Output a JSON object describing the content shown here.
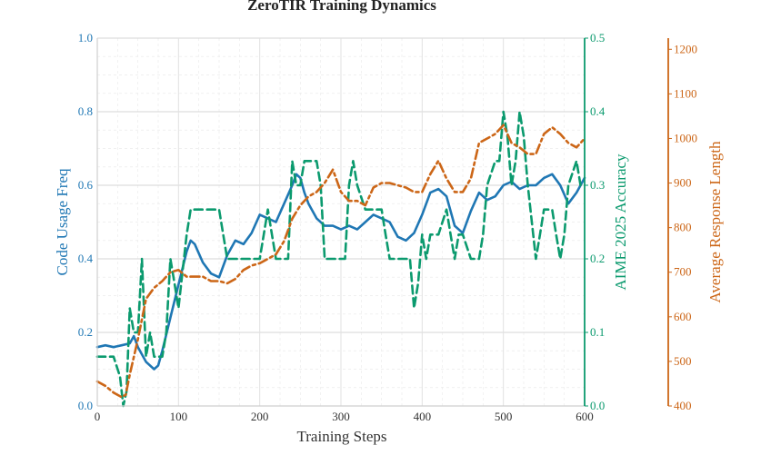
{
  "chart_data": {
    "type": "line",
    "title": "ZeroTIR Training Dynamics",
    "xlabel": "Training Steps",
    "xlim": [
      0,
      600
    ],
    "x_ticks": [
      0,
      100,
      200,
      300,
      400,
      500,
      600
    ],
    "grid": true,
    "colors": {
      "code": "#1f77b4",
      "aime": "#0b9a6e",
      "length": "#cc6617",
      "grid": "#d4d4d4"
    },
    "axes": [
      {
        "side": "left",
        "label": "Code Usage Freq",
        "ylim": [
          0.0,
          1.0
        ],
        "ticks": [
          "0.0",
          "0.2",
          "0.4",
          "0.6",
          "0.8",
          "1.0"
        ]
      },
      {
        "side": "right",
        "label": "AIME 2025 Accuracy",
        "ylim": [
          0.0,
          0.5
        ],
        "ticks": [
          "0.0",
          "0.1",
          "0.2",
          "0.3",
          "0.4",
          "0.5"
        ]
      },
      {
        "side": "right-offset",
        "label": "Average Response Length",
        "ylim": [
          400,
          1225
        ],
        "ticks": [
          "400",
          "500",
          "600",
          "700",
          "800",
          "900",
          "1000",
          "1100",
          "1200"
        ]
      }
    ],
    "series": [
      {
        "key": "code",
        "axis": 0,
        "style": "solid",
        "x": [
          0,
          10,
          20,
          30,
          40,
          45,
          50,
          60,
          70,
          75,
          80,
          90,
          100,
          110,
          115,
          120,
          130,
          140,
          150,
          160,
          170,
          180,
          190,
          200,
          210,
          220,
          230,
          240,
          245,
          250,
          255,
          260,
          270,
          280,
          290,
          300,
          310,
          320,
          330,
          340,
          350,
          360,
          370,
          380,
          390,
          400,
          410,
          420,
          430,
          440,
          450,
          460,
          470,
          480,
          490,
          500,
          510,
          520,
          530,
          540,
          550,
          560,
          570,
          580,
          590,
          600
        ],
        "values": [
          0.16,
          0.165,
          0.16,
          0.165,
          0.17,
          0.19,
          0.16,
          0.12,
          0.1,
          0.11,
          0.15,
          0.24,
          0.33,
          0.42,
          0.45,
          0.44,
          0.39,
          0.36,
          0.35,
          0.41,
          0.45,
          0.44,
          0.47,
          0.52,
          0.51,
          0.5,
          0.55,
          0.6,
          0.63,
          0.62,
          0.58,
          0.55,
          0.51,
          0.49,
          0.49,
          0.48,
          0.49,
          0.48,
          0.5,
          0.52,
          0.51,
          0.5,
          0.46,
          0.45,
          0.47,
          0.52,
          0.58,
          0.59,
          0.57,
          0.49,
          0.47,
          0.53,
          0.58,
          0.56,
          0.57,
          0.6,
          0.61,
          0.59,
          0.6,
          0.6,
          0.62,
          0.63,
          0.6,
          0.55,
          0.58,
          0.62
        ]
      },
      {
        "key": "aime",
        "axis": 1,
        "style": "dashed",
        "x": [
          0,
          20,
          28,
          32,
          36,
          40,
          45,
          50,
          55,
          60,
          65,
          70,
          75,
          80,
          85,
          90,
          95,
          100,
          110,
          115,
          120,
          130,
          140,
          150,
          160,
          170,
          180,
          190,
          200,
          205,
          210,
          215,
          220,
          225,
          230,
          235,
          240,
          245,
          250,
          255,
          260,
          265,
          270,
          275,
          280,
          300,
          305,
          310,
          315,
          320,
          330,
          340,
          350,
          355,
          360,
          380,
          385,
          390,
          395,
          400,
          405,
          410,
          420,
          430,
          435,
          440,
          445,
          450,
          460,
          470,
          475,
          480,
          490,
          495,
          500,
          505,
          510,
          515,
          520,
          525,
          530,
          540,
          545,
          550,
          560,
          565,
          570,
          575,
          580,
          590,
          595,
          600
        ],
        "values": [
          0.067,
          0.067,
          0.04,
          0.0,
          0.02,
          0.133,
          0.1,
          0.1,
          0.2,
          0.067,
          0.1,
          0.067,
          0.067,
          0.067,
          0.1,
          0.2,
          0.167,
          0.133,
          0.233,
          0.267,
          0.267,
          0.267,
          0.267,
          0.267,
          0.2,
          0.2,
          0.2,
          0.2,
          0.2,
          0.233,
          0.267,
          0.233,
          0.2,
          0.2,
          0.2,
          0.2,
          0.333,
          0.3,
          0.3,
          0.333,
          0.333,
          0.333,
          0.333,
          0.3,
          0.2,
          0.2,
          0.2,
          0.3,
          0.333,
          0.3,
          0.267,
          0.267,
          0.267,
          0.233,
          0.2,
          0.2,
          0.2,
          0.133,
          0.167,
          0.233,
          0.2,
          0.233,
          0.233,
          0.267,
          0.233,
          0.2,
          0.233,
          0.233,
          0.2,
          0.2,
          0.233,
          0.3,
          0.333,
          0.333,
          0.4,
          0.367,
          0.3,
          0.333,
          0.4,
          0.367,
          0.3,
          0.2,
          0.233,
          0.267,
          0.267,
          0.233,
          0.2,
          0.233,
          0.3,
          0.333,
          0.3,
          0.3
        ]
      },
      {
        "key": "length",
        "axis": 2,
        "style": "dashdot",
        "x": [
          0,
          10,
          20,
          30,
          35,
          40,
          50,
          60,
          70,
          80,
          90,
          100,
          110,
          120,
          130,
          140,
          150,
          160,
          170,
          180,
          190,
          200,
          210,
          220,
          230,
          240,
          250,
          260,
          270,
          280,
          290,
          300,
          310,
          320,
          330,
          340,
          350,
          360,
          370,
          380,
          390,
          400,
          410,
          420,
          430,
          440,
          450,
          460,
          470,
          480,
          490,
          500,
          505,
          510,
          520,
          530,
          540,
          550,
          560,
          570,
          580,
          590,
          600
        ],
        "values": [
          455,
          445,
          430,
          420,
          425,
          470,
          550,
          640,
          665,
          680,
          700,
          705,
          690,
          690,
          690,
          680,
          680,
          675,
          685,
          705,
          715,
          720,
          730,
          740,
          770,
          820,
          850,
          870,
          880,
          900,
          930,
          880,
          860,
          860,
          850,
          890,
          900,
          900,
          895,
          890,
          880,
          880,
          920,
          950,
          910,
          880,
          880,
          910,
          990,
          1000,
          1010,
          1030,
          1010,
          990,
          980,
          965,
          965,
          1010,
          1025,
          1010,
          990,
          980,
          1000
        ]
      }
    ]
  }
}
